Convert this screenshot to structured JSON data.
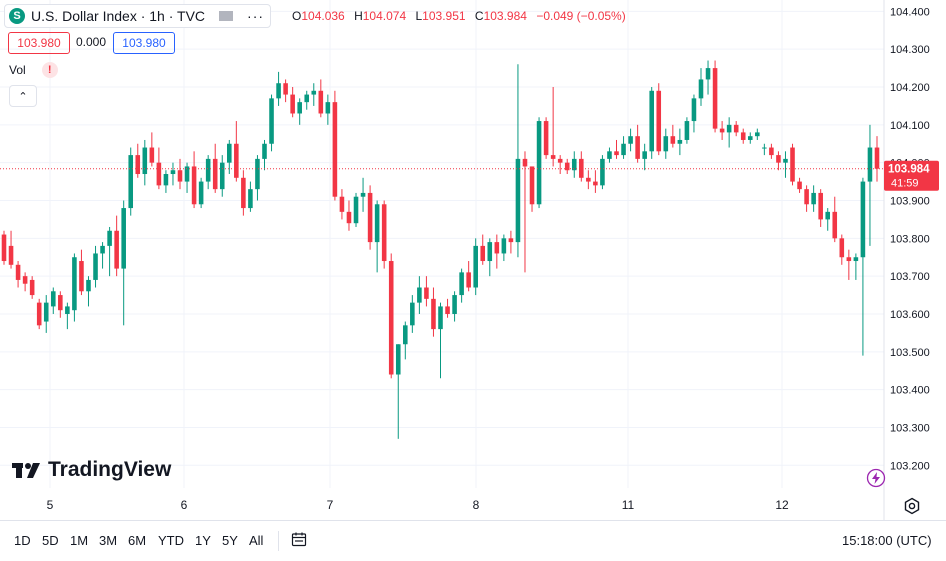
{
  "legend": {
    "symbol_badge": "S",
    "title": "U.S. Dollar Index · 1h · TVC",
    "more": "···",
    "ohlc": {
      "o_label": "O",
      "o": "104.036",
      "h_label": "H",
      "h": "104.074",
      "l_label": "L",
      "l": "103.951",
      "c_label": "C",
      "c": "103.984",
      "change": "−0.049 (−0.05%)"
    }
  },
  "price_boxes": {
    "bid": "103.980",
    "spread": "0.000",
    "ask": "103.980"
  },
  "volume": {
    "label": "Vol",
    "warning": "!"
  },
  "collapse_icon": "⌃",
  "brand": {
    "name": "TradingView"
  },
  "last_price": {
    "value": "103.984",
    "countdown": "41:59"
  },
  "bottom_bar": {
    "timeframes": [
      "1D",
      "5D",
      "1M",
      "3M",
      "6M",
      "YTD",
      "1Y",
      "5Y",
      "All"
    ],
    "clock": "15:18:00 (UTC)"
  },
  "colors": {
    "up": "#089981",
    "down": "#f23645",
    "grid": "#f0f3fa",
    "text": "#131722"
  },
  "chart_data": {
    "type": "candlestick",
    "ylim": [
      103.14,
      104.43
    ],
    "y_ticks": [
      "104.400",
      "104.300",
      "104.200",
      "104.100",
      "104.000",
      "103.900",
      "103.800",
      "103.700",
      "103.600",
      "103.500",
      "103.400",
      "103.300",
      "103.200"
    ],
    "x_ticks": [
      "5",
      "6",
      "7",
      "8",
      "11",
      "12"
    ],
    "current_price": 103.984,
    "grid": true,
    "candles": [
      [
        103.81,
        103.82,
        103.73,
        103.74
      ],
      [
        103.78,
        103.82,
        103.72,
        103.73
      ],
      [
        103.73,
        103.74,
        103.67,
        103.69
      ],
      [
        103.7,
        103.71,
        103.66,
        103.68
      ],
      [
        103.69,
        103.7,
        103.64,
        103.65
      ],
      [
        103.63,
        103.64,
        103.56,
        103.57
      ],
      [
        103.58,
        103.65,
        103.55,
        103.63
      ],
      [
        103.62,
        103.67,
        103.6,
        103.66
      ],
      [
        103.65,
        103.66,
        103.59,
        103.61
      ],
      [
        103.6,
        103.63,
        103.56,
        103.62
      ],
      [
        103.61,
        103.76,
        103.58,
        103.75
      ],
      [
        103.74,
        103.77,
        103.65,
        103.66
      ],
      [
        103.66,
        103.7,
        103.62,
        103.69
      ],
      [
        103.69,
        103.78,
        103.67,
        103.76
      ],
      [
        103.76,
        103.79,
        103.72,
        103.78
      ],
      [
        103.78,
        103.83,
        103.7,
        103.82
      ],
      [
        103.82,
        103.86,
        103.7,
        103.72
      ],
      [
        103.72,
        103.9,
        103.57,
        103.88
      ],
      [
        103.88,
        104.04,
        103.86,
        104.02
      ],
      [
        104.02,
        104.05,
        103.96,
        103.97
      ],
      [
        103.97,
        104.06,
        103.94,
        104.04
      ],
      [
        104.04,
        104.08,
        103.99,
        104.0
      ],
      [
        104.0,
        104.04,
        103.93,
        103.94
      ],
      [
        103.94,
        103.98,
        103.92,
        103.97
      ],
      [
        103.97,
        104.0,
        103.94,
        103.98
      ],
      [
        103.98,
        104.01,
        103.93,
        103.95
      ],
      [
        103.95,
        104.0,
        103.92,
        103.99
      ],
      [
        103.99,
        104.03,
        103.88,
        103.89
      ],
      [
        103.89,
        103.96,
        103.88,
        103.95
      ],
      [
        103.95,
        104.02,
        103.93,
        104.01
      ],
      [
        104.01,
        104.05,
        103.92,
        103.93
      ],
      [
        103.93,
        104.02,
        103.91,
        104.0
      ],
      [
        104.0,
        104.06,
        103.97,
        104.05
      ],
      [
        104.05,
        104.11,
        103.95,
        103.96
      ],
      [
        103.96,
        103.98,
        103.86,
        103.88
      ],
      [
        103.88,
        103.95,
        103.87,
        103.93
      ],
      [
        103.93,
        104.02,
        103.9,
        104.01
      ],
      [
        104.01,
        104.06,
        103.98,
        104.05
      ],
      [
        104.05,
        104.18,
        104.03,
        104.17
      ],
      [
        104.17,
        104.24,
        104.15,
        104.21
      ],
      [
        104.21,
        104.22,
        104.16,
        104.18
      ],
      [
        104.18,
        104.2,
        104.12,
        104.13
      ],
      [
        104.13,
        104.17,
        104.1,
        104.16
      ],
      [
        104.16,
        104.19,
        104.14,
        104.18
      ],
      [
        104.18,
        104.21,
        104.15,
        104.19
      ],
      [
        104.19,
        104.22,
        104.12,
        104.13
      ],
      [
        104.13,
        104.18,
        104.1,
        104.16
      ],
      [
        104.16,
        104.19,
        103.9,
        103.91
      ],
      [
        103.91,
        103.93,
        103.85,
        103.87
      ],
      [
        103.87,
        103.9,
        103.82,
        103.84
      ],
      [
        103.84,
        103.92,
        103.83,
        103.91
      ],
      [
        103.91,
        103.96,
        103.87,
        103.92
      ],
      [
        103.92,
        103.94,
        103.77,
        103.79
      ],
      [
        103.79,
        103.9,
        103.71,
        103.89
      ],
      [
        103.89,
        103.9,
        103.72,
        103.74
      ],
      [
        103.74,
        103.76,
        103.43,
        103.44
      ],
      [
        103.44,
        103.52,
        103.27,
        103.52
      ],
      [
        103.52,
        103.58,
        103.48,
        103.57
      ],
      [
        103.57,
        103.65,
        103.55,
        103.63
      ],
      [
        103.63,
        103.7,
        103.6,
        103.67
      ],
      [
        103.67,
        103.7,
        103.62,
        103.64
      ],
      [
        103.64,
        103.67,
        103.54,
        103.56
      ],
      [
        103.56,
        103.63,
        103.43,
        103.62
      ],
      [
        103.62,
        103.64,
        103.59,
        103.6
      ],
      [
        103.6,
        103.66,
        103.58,
        103.65
      ],
      [
        103.65,
        103.72,
        103.63,
        103.71
      ],
      [
        103.71,
        103.74,
        103.66,
        103.67
      ],
      [
        103.67,
        103.8,
        103.65,
        103.78
      ],
      [
        103.78,
        103.81,
        103.73,
        103.74
      ],
      [
        103.74,
        103.8,
        103.7,
        103.79
      ],
      [
        103.79,
        103.81,
        103.72,
        103.76
      ],
      [
        103.76,
        103.81,
        103.74,
        103.8
      ],
      [
        103.8,
        103.82,
        103.76,
        103.79
      ],
      [
        103.79,
        104.26,
        103.75,
        104.01
      ],
      [
        104.01,
        104.03,
        103.71,
        103.99
      ],
      [
        103.99,
        103.99,
        103.87,
        103.89
      ],
      [
        103.89,
        104.12,
        103.88,
        104.11
      ],
      [
        104.11,
        104.12,
        104.01,
        104.02
      ],
      [
        104.02,
        104.2,
        103.99,
        104.01
      ],
      [
        104.01,
        104.02,
        103.97,
        104.0
      ],
      [
        104.0,
        104.01,
        103.97,
        103.98
      ],
      [
        103.98,
        104.03,
        103.96,
        104.01
      ],
      [
        104.01,
        104.03,
        103.95,
        103.96
      ],
      [
        103.96,
        103.98,
        103.93,
        103.95
      ],
      [
        103.95,
        103.98,
        103.92,
        103.94
      ],
      [
        103.94,
        104.02,
        103.93,
        104.01
      ],
      [
        104.01,
        104.04,
        104.0,
        104.03
      ],
      [
        104.03,
        104.06,
        104.01,
        104.02
      ],
      [
        104.02,
        104.07,
        104.01,
        104.05
      ],
      [
        104.05,
        104.09,
        104.03,
        104.07
      ],
      [
        104.07,
        104.1,
        104.0,
        104.01
      ],
      [
        104.01,
        104.05,
        103.98,
        104.03
      ],
      [
        104.03,
        104.2,
        104.01,
        104.19
      ],
      [
        104.19,
        104.21,
        104.02,
        104.03
      ],
      [
        104.03,
        104.09,
        104.01,
        104.07
      ],
      [
        104.07,
        104.1,
        104.04,
        104.05
      ],
      [
        104.05,
        104.09,
        104.02,
        104.06
      ],
      [
        104.06,
        104.12,
        104.05,
        104.11
      ],
      [
        104.11,
        104.18,
        104.08,
        104.17
      ],
      [
        104.17,
        104.25,
        104.15,
        104.22
      ],
      [
        104.22,
        104.27,
        104.18,
        104.25
      ],
      [
        104.25,
        104.27,
        104.08,
        104.09
      ],
      [
        104.09,
        104.11,
        104.06,
        104.08
      ],
      [
        104.08,
        104.12,
        104.04,
        104.1
      ],
      [
        104.1,
        104.11,
        104.07,
        104.08
      ],
      [
        104.08,
        104.09,
        104.05,
        104.06
      ],
      [
        104.06,
        104.08,
        104.05,
        104.07
      ],
      [
        104.07,
        104.09,
        104.06,
        104.08
      ],
      [
        104.04,
        104.05,
        104.02,
        104.04
      ],
      [
        104.04,
        104.05,
        104.01,
        104.02
      ],
      [
        104.02,
        104.03,
        103.98,
        104.0
      ],
      [
        104.0,
        104.03,
        103.96,
        104.01
      ],
      [
        104.04,
        104.05,
        103.94,
        103.95
      ],
      [
        103.95,
        103.96,
        103.92,
        103.93
      ],
      [
        103.93,
        103.94,
        103.87,
        103.89
      ],
      [
        103.89,
        103.94,
        103.87,
        103.92
      ],
      [
        103.92,
        103.93,
        103.83,
        103.85
      ],
      [
        103.85,
        103.88,
        103.82,
        103.87
      ],
      [
        103.87,
        103.91,
        103.79,
        103.8
      ],
      [
        103.8,
        103.81,
        103.73,
        103.75
      ],
      [
        103.75,
        103.77,
        103.69,
        103.74
      ],
      [
        103.74,
        103.76,
        103.69,
        103.75
      ],
      [
        103.75,
        103.96,
        103.49,
        103.95
      ],
      [
        103.95,
        104.1,
        103.78,
        104.04
      ],
      [
        104.04,
        104.07,
        103.95,
        103.984
      ]
    ]
  }
}
